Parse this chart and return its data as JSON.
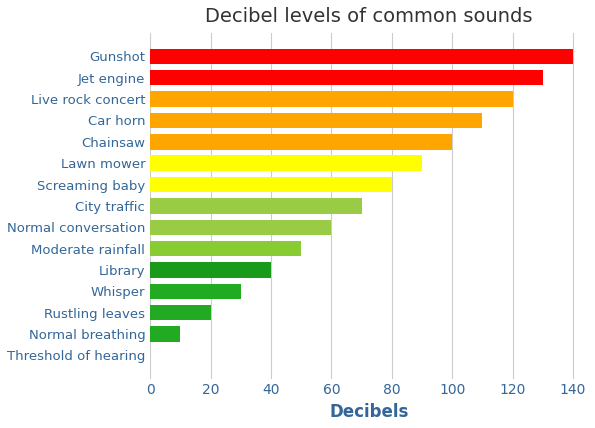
{
  "title": "Decibel levels of common sounds",
  "xlabel": "Decibels",
  "categories": [
    "Threshold of hearing",
    "Normal breathing",
    "Rustling leaves",
    "Whisper",
    "Library",
    "Moderate rainfall",
    "Normal conversation",
    "City traffic",
    "Screaming baby",
    "Lawn mower",
    "Chainsaw",
    "Car horn",
    "Live rock concert",
    "Jet engine",
    "Gunshot"
  ],
  "values": [
    0,
    10,
    20,
    30,
    40,
    50,
    60,
    70,
    80,
    90,
    100,
    110,
    120,
    130,
    140
  ],
  "colors": [
    "#d3d3d3",
    "#22aa22",
    "#22aa22",
    "#22aa22",
    "#1a9a1a",
    "#88cc33",
    "#99cc44",
    "#99cc44",
    "#ffff00",
    "#ffff00",
    "#ffa500",
    "#ffa500",
    "#ffa500",
    "#ff0000",
    "#ff0000"
  ],
  "xlim": [
    0,
    145
  ],
  "xticks": [
    0,
    20,
    40,
    60,
    80,
    100,
    120,
    140
  ],
  "title_fontsize": 14,
  "label_fontsize": 12,
  "ytick_fontsize": 9.5,
  "xtick_fontsize": 10,
  "background_color": "#ffffff",
  "grid_color": "#cccccc",
  "title_color": "#333333",
  "axis_label_color": "#336699",
  "tick_label_color": "#7f7f7f"
}
